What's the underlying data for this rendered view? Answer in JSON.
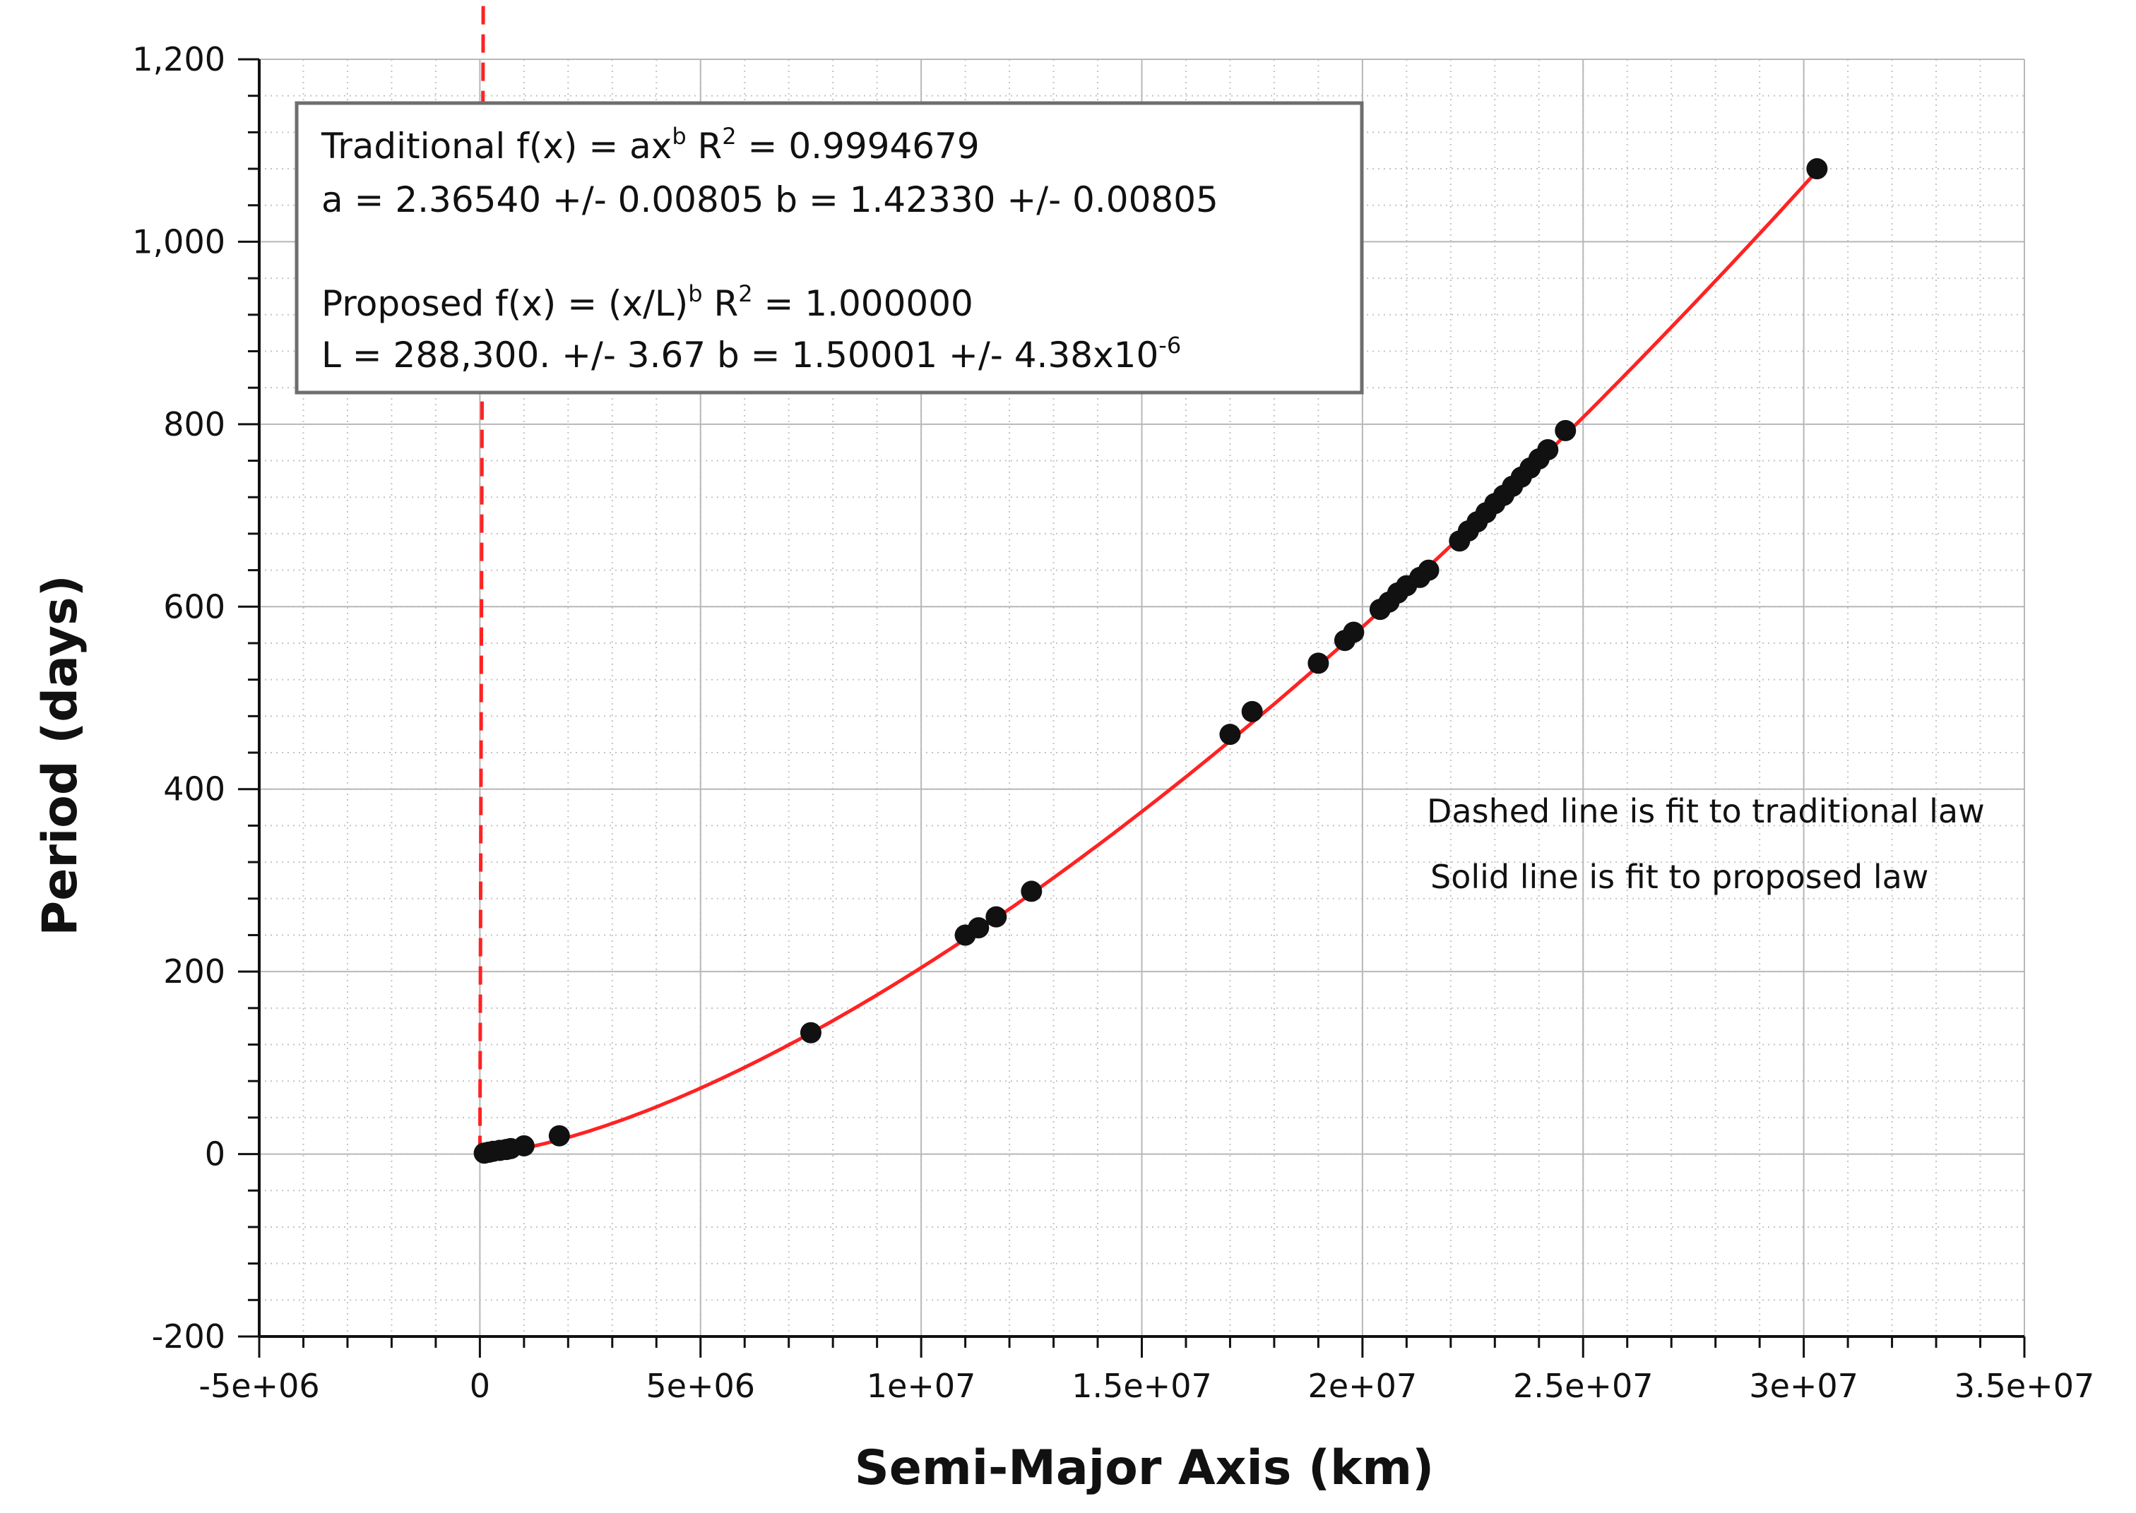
{
  "chart_data": {
    "type": "scatter",
    "xlabel": "Semi-Major Axis (km)",
    "ylabel": "Period (days)",
    "xlim": [
      -5000000,
      35000000
    ],
    "ylim": [
      -200,
      1200
    ],
    "x_ticks": [
      -5000000,
      0,
      5000000,
      10000000,
      15000000,
      20000000,
      25000000,
      30000000,
      35000000
    ],
    "x_tick_labels": [
      "-5e+06",
      "0",
      "5e+06",
      "1e+07",
      "1.5e+07",
      "2e+07",
      "2.5e+07",
      "3e+07",
      "3.5e+07"
    ],
    "y_ticks": [
      -200,
      0,
      200,
      400,
      600,
      800,
      1000,
      1200
    ],
    "y_tick_labels": [
      "-200",
      "0",
      "200",
      "400",
      "600",
      "800",
      "1,000",
      "1,200"
    ],
    "grid": true,
    "points": [
      [
        100000,
        1
      ],
      [
        200000,
        2
      ],
      [
        300000,
        3
      ],
      [
        450000,
        4
      ],
      [
        600000,
        5
      ],
      [
        700000,
        6
      ],
      [
        1000000,
        9
      ],
      [
        1800000,
        20
      ],
      [
        7500000,
        133
      ],
      [
        11000000,
        240
      ],
      [
        11300000,
        248
      ],
      [
        11700000,
        260
      ],
      [
        12500000,
        288
      ],
      [
        17000000,
        460
      ],
      [
        17500000,
        485
      ],
      [
        19000000,
        538
      ],
      [
        19600000,
        563
      ],
      [
        19800000,
        572
      ],
      [
        20400000,
        597
      ],
      [
        20600000,
        605
      ],
      [
        20800000,
        615
      ],
      [
        21000000,
        623
      ],
      [
        21300000,
        632
      ],
      [
        21500000,
        640
      ],
      [
        22200000,
        672
      ],
      [
        22400000,
        683
      ],
      [
        22600000,
        693
      ],
      [
        22800000,
        703
      ],
      [
        23000000,
        713
      ],
      [
        23200000,
        722
      ],
      [
        23400000,
        732
      ],
      [
        23600000,
        742
      ],
      [
        23800000,
        752
      ],
      [
        24000000,
        762
      ],
      [
        24200000,
        772
      ],
      [
        24600000,
        793
      ],
      [
        30300000,
        1080
      ]
    ],
    "series": [
      {
        "style": "dashed",
        "color": "#ff2222",
        "formula": "traditional",
        "a": 2.3654,
        "b": 1.4233
      },
      {
        "style": "solid",
        "color": "#ff2222",
        "formula": "proposed",
        "L": 288300,
        "b": 1.50001
      }
    ],
    "point_color": "#111111",
    "fit_x_range": [
      0,
      30300000
    ],
    "annotations": {
      "box": {
        "line1_text": "Traditional f(x) = ax",
        "line1_sup": "b",
        "line1_r2_pre": " R",
        "line1_r2_sup": "2",
        "line1_r2_val": " = 0.9994679",
        "line2": "a = 2.36540 +/- 0.00805 b = 1.42330 +/- 0.00805",
        "line3_text": "Proposed f(x) = (x/L)",
        "line3_sup": "b",
        "line3_r2_pre": " R",
        "line3_r2_sup": "2",
        "line3_r2_val": " = 1.000000",
        "line4_text": "L = 288,300. +/- 3.67 b = 1.50001 +/- 4.38x10",
        "line4_sup": "-6"
      },
      "note1": "Dashed line is fit to traditional law",
      "note2": "Solid line is fit to proposed law"
    }
  }
}
